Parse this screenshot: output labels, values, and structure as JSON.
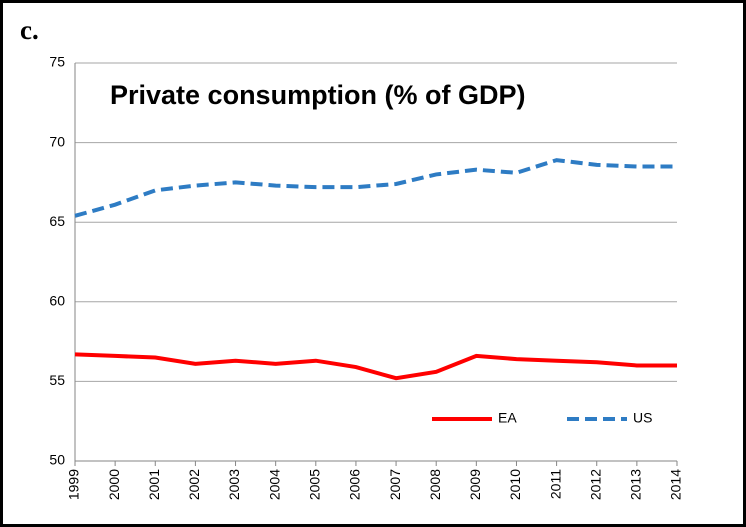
{
  "chart_data": {
    "type": "line",
    "panel_label": "c.",
    "title": "Private consumption  (% of GDP)",
    "categories": [
      "1999",
      "2000",
      "2001",
      "2002",
      "2003",
      "2004",
      "2005",
      "2006",
      "2007",
      "2008",
      "2009",
      "2010",
      "2011",
      "2012",
      "2013",
      "2014"
    ],
    "series": [
      {
        "name": "EA",
        "color": "#ff0000",
        "dash": false,
        "values": [
          56.7,
          56.6,
          56.5,
          56.1,
          56.3,
          56.1,
          56.3,
          55.9,
          55.2,
          55.6,
          56.6,
          56.4,
          56.3,
          56.2,
          56.0,
          56.0
        ]
      },
      {
        "name": "US",
        "color": "#2e7cc4",
        "dash": true,
        "values": [
          65.4,
          66.1,
          67.0,
          67.3,
          67.5,
          67.3,
          67.2,
          67.2,
          67.4,
          68.0,
          68.3,
          68.1,
          68.9,
          68.6,
          68.5,
          68.5
        ]
      }
    ],
    "ylim": [
      50,
      75
    ],
    "yticks": [
      50,
      55,
      60,
      65,
      70,
      75
    ],
    "grid": true,
    "legend": "lower right"
  }
}
